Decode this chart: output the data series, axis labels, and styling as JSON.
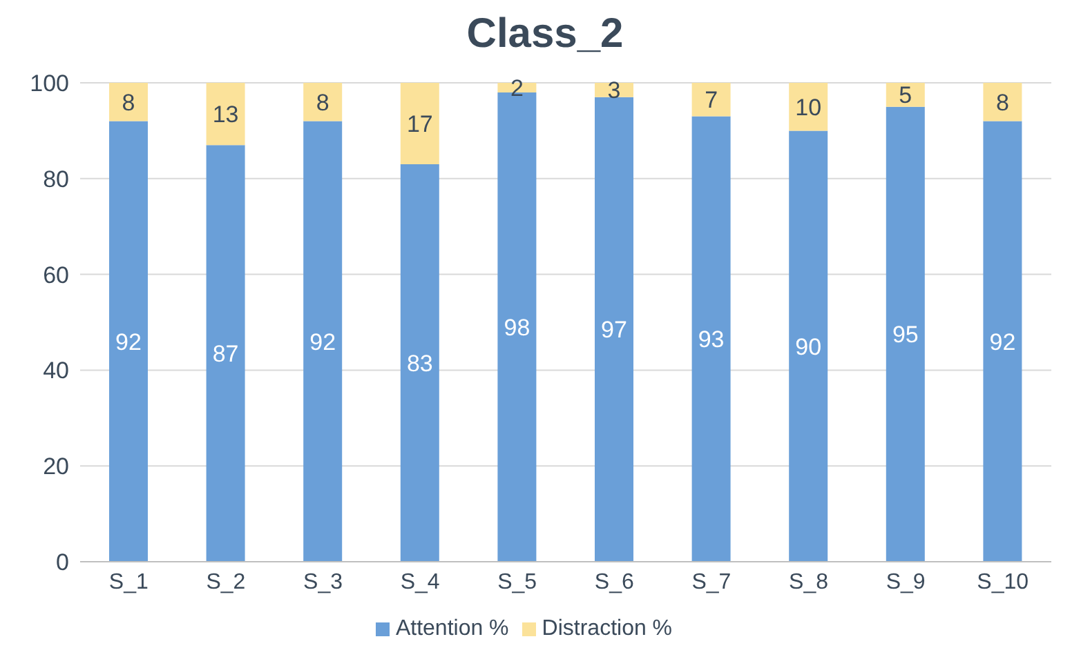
{
  "chart_data": {
    "type": "bar",
    "title": "Class_2",
    "stacked": true,
    "categories": [
      "S_1",
      "S_2",
      "S_3",
      "S_4",
      "S_5",
      "S_6",
      "S_7",
      "S_8",
      "S_9",
      "S_10"
    ],
    "series": [
      {
        "name": "Attention %",
        "color": "#6a9fd8",
        "values": [
          92,
          87,
          92,
          83,
          98,
          97,
          93,
          90,
          95,
          92
        ]
      },
      {
        "name": "Distraction %",
        "color": "#fbe29a",
        "values": [
          8,
          13,
          8,
          17,
          2,
          3,
          7,
          10,
          5,
          8
        ]
      }
    ],
    "ylim": [
      0,
      100
    ],
    "yticks": [
      0,
      20,
      40,
      60,
      80,
      100
    ],
    "grid": "y",
    "legend": "bottom",
    "data_labels": true
  }
}
